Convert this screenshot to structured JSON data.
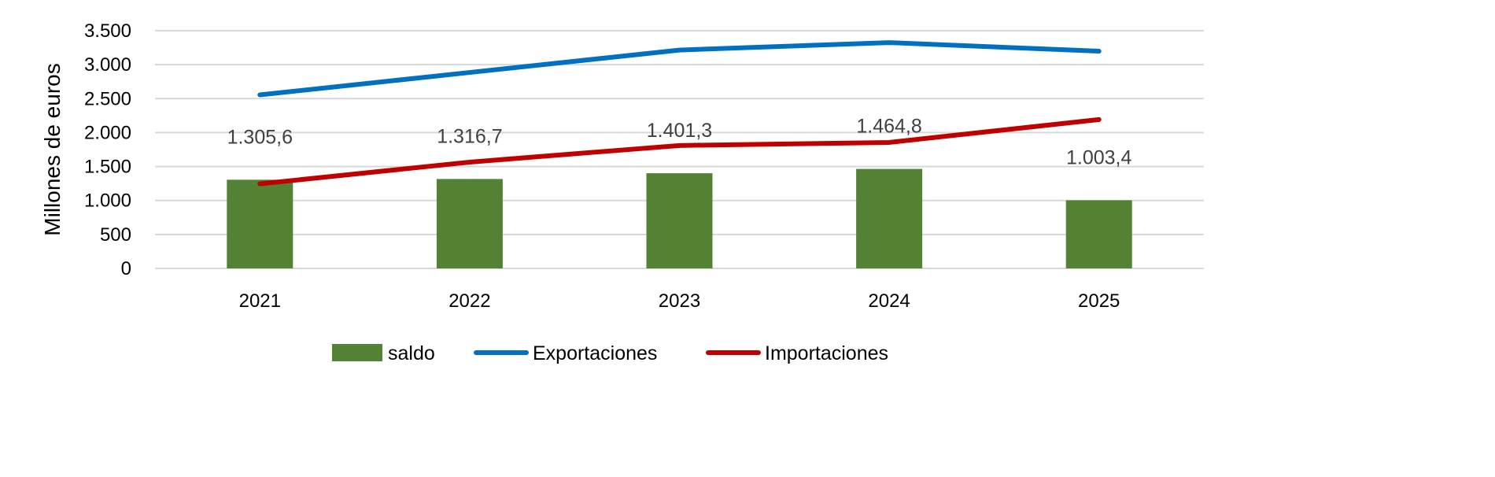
{
  "chart_data": {
    "type": "bar+line",
    "categories": [
      "2021",
      "2022",
      "2023",
      "2024",
      "2025"
    ],
    "ylabel": "Millones de euros",
    "xlabel": "",
    "ylim": [
      0,
      3500
    ],
    "yticks": [
      0,
      500,
      1000,
      1500,
      2000,
      2500,
      3000,
      3500
    ],
    "ytick_labels": [
      "0",
      "500",
      "1.000",
      "1.500",
      "2.000",
      "2.500",
      "3.000",
      "3.500"
    ],
    "grid": true,
    "legend_position": "bottom",
    "series": [
      {
        "name": "saldo",
        "type": "bar",
        "color": "#548235",
        "values": [
          1305.6,
          1316.7,
          1401.3,
          1464.8,
          1003.4
        ],
        "labels": [
          "1.305,6",
          "1.316,7",
          "1.401,3",
          "1.464,8",
          "1.003,4"
        ]
      },
      {
        "name": "Exportaciones",
        "type": "line",
        "color": "#0070C0",
        "values": [
          2555,
          2885,
          3215,
          3325,
          3198
        ]
      },
      {
        "name": "Importaciones",
        "type": "line",
        "color": "#C00000",
        "values": [
          1245,
          1565,
          1810,
          1855,
          2192
        ]
      }
    ]
  }
}
